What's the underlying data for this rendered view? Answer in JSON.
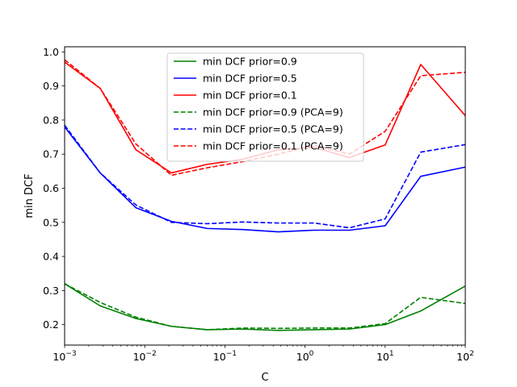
{
  "chart_data": {
    "type": "line",
    "xlabel": "C",
    "ylabel": "min DCF",
    "xscale": "log",
    "xlim": [
      0.001,
      100
    ],
    "ylim": [
      0.14,
      1.015
    ],
    "xticks": [
      {
        "value": 0.001,
        "base": "10",
        "exp": "−3"
      },
      {
        "value": 0.01,
        "base": "10",
        "exp": "−2"
      },
      {
        "value": 0.1,
        "base": "10",
        "exp": "−1"
      },
      {
        "value": 1,
        "base": "10",
        "exp": "0"
      },
      {
        "value": 10,
        "base": "10",
        "exp": "1"
      },
      {
        "value": 100,
        "base": "10",
        "exp": "2"
      }
    ],
    "yticks": [
      "0.2",
      "0.3",
      "0.4",
      "0.5",
      "0.6",
      "0.7",
      "0.8",
      "0.9",
      "1.0"
    ],
    "legend_position": "upper-center",
    "x": [
      0.001,
      0.00278,
      0.00774,
      0.0215,
      0.0599,
      0.167,
      0.464,
      1.29,
      3.59,
      10.0,
      27.8,
      100
    ],
    "series": [
      {
        "name": "min DCF prior=0.9",
        "color": "#008000",
        "dash": "solid",
        "values": [
          0.32,
          0.255,
          0.218,
          0.195,
          0.185,
          0.187,
          0.183,
          0.185,
          0.187,
          0.2,
          0.24,
          0.313
        ]
      },
      {
        "name": "min DCF prior=0.5",
        "color": "#0000ff",
        "dash": "solid",
        "values": [
          0.78,
          0.645,
          0.543,
          0.503,
          0.482,
          0.479,
          0.472,
          0.477,
          0.477,
          0.49,
          0.635,
          0.662
        ]
      },
      {
        "name": "min DCF prior=0.1",
        "color": "#ff0000",
        "dash": "solid",
        "values": [
          0.97,
          0.893,
          0.713,
          0.645,
          0.67,
          0.685,
          0.713,
          0.72,
          0.69,
          0.727,
          0.963,
          0.813
        ]
      },
      {
        "name": "min DCF prior=0.9 (PCA=9)",
        "color": "#008000",
        "dash": "dashed",
        "values": [
          0.32,
          0.265,
          0.222,
          0.195,
          0.185,
          0.19,
          0.189,
          0.19,
          0.19,
          0.203,
          0.28,
          0.262
        ]
      },
      {
        "name": "min DCF prior=0.5 (PCA=9)",
        "color": "#0000ff",
        "dash": "dashed",
        "values": [
          0.785,
          0.645,
          0.551,
          0.5,
          0.496,
          0.501,
          0.498,
          0.498,
          0.484,
          0.51,
          0.706,
          0.728
        ]
      },
      {
        "name": "min DCF prior=0.1 (PCA=9)",
        "color": "#ff0000",
        "dash": "dashed",
        "values": [
          0.977,
          0.893,
          0.73,
          0.638,
          0.66,
          0.678,
          0.7,
          0.726,
          0.7,
          0.767,
          0.93,
          0.94
        ]
      }
    ]
  }
}
